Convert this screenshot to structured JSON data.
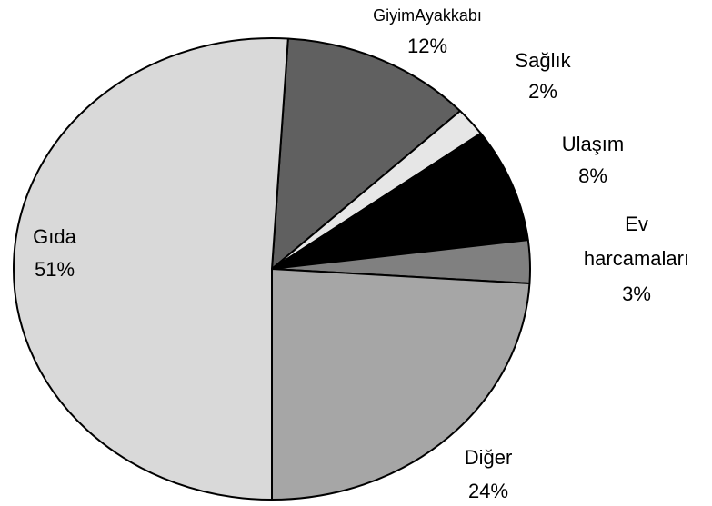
{
  "chart_data": {
    "type": "pie",
    "categories": [
      "GiyimAyakkabı",
      "Sağlık",
      "Ulaşım",
      "Ev harcamaları",
      "Diğer",
      "Gıda"
    ],
    "values": [
      12,
      2,
      8,
      3,
      24,
      51
    ],
    "value_labels": [
      "12%",
      "2%",
      "8%",
      "3%",
      "24%",
      "51%"
    ],
    "colors": [
      "#606060",
      "#e6e6e6",
      "#000000",
      "#808080",
      "#a6a6a6",
      "#d9d9d9"
    ]
  }
}
